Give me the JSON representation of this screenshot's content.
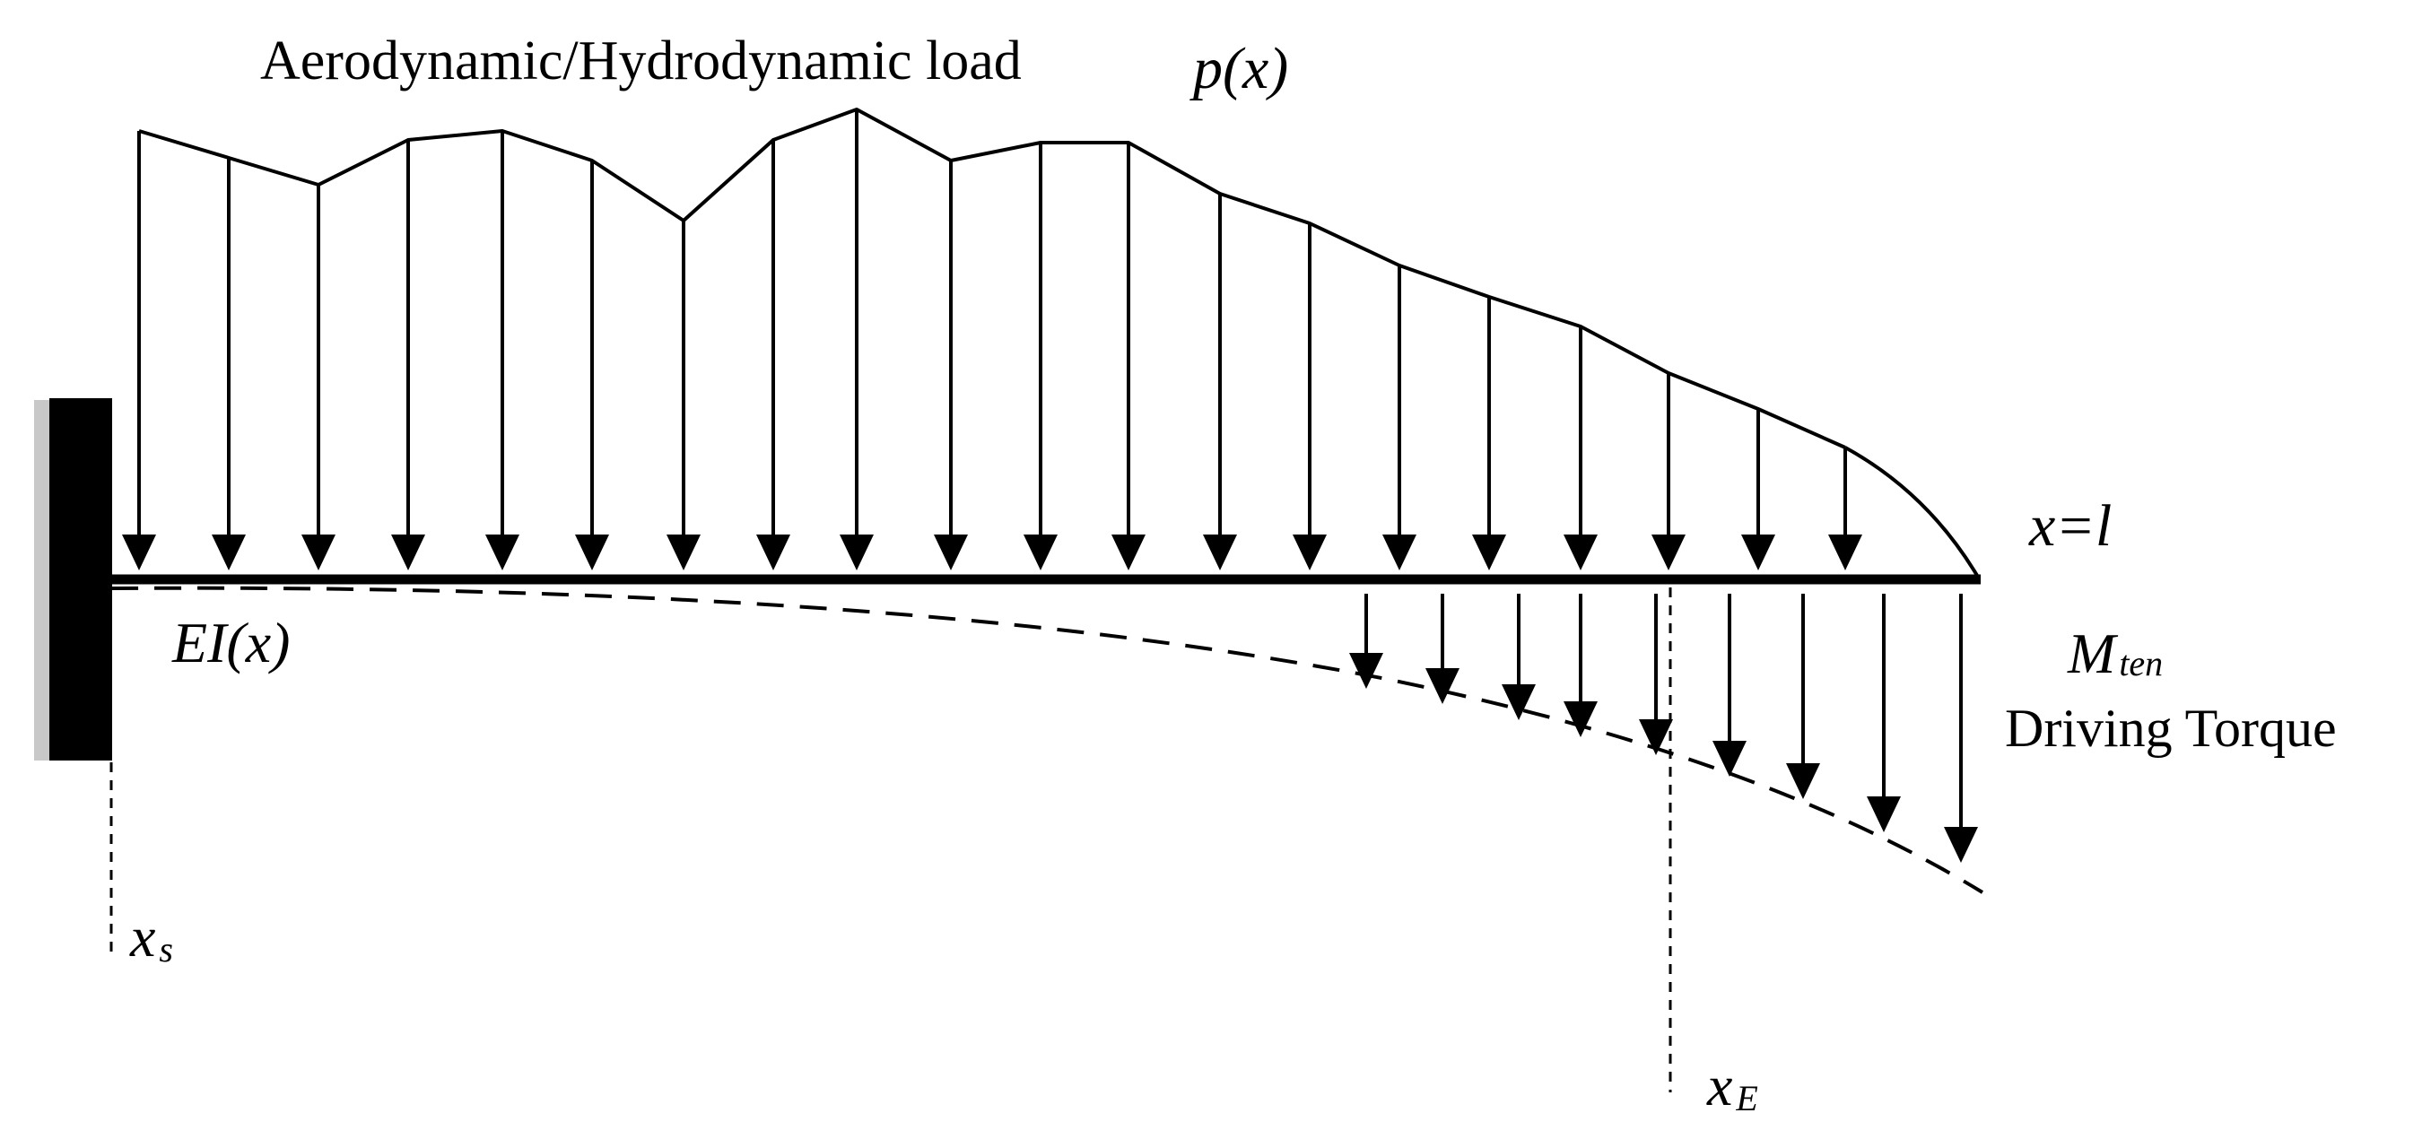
{
  "labels": {
    "load_title": "Aerodynamic/Hydrodynamic load",
    "load_symbol": "p(x)",
    "beam_end": "x=l",
    "stiffness": "EI(x)",
    "moment_main": "M",
    "moment_sub": "ten",
    "driving_torque": "Driving Torque",
    "xs_main": "x",
    "xs_sub": "s",
    "xe_main": "x",
    "xe_sub": "E"
  },
  "colors": {
    "ink": "#000000",
    "wall_shadow": "#c8c8c8",
    "background": "#ffffff"
  },
  "icons": {
    "support": "fixed-wall-support",
    "load_arrow": "down-arrow",
    "torque_arrow": "down-arrow"
  }
}
